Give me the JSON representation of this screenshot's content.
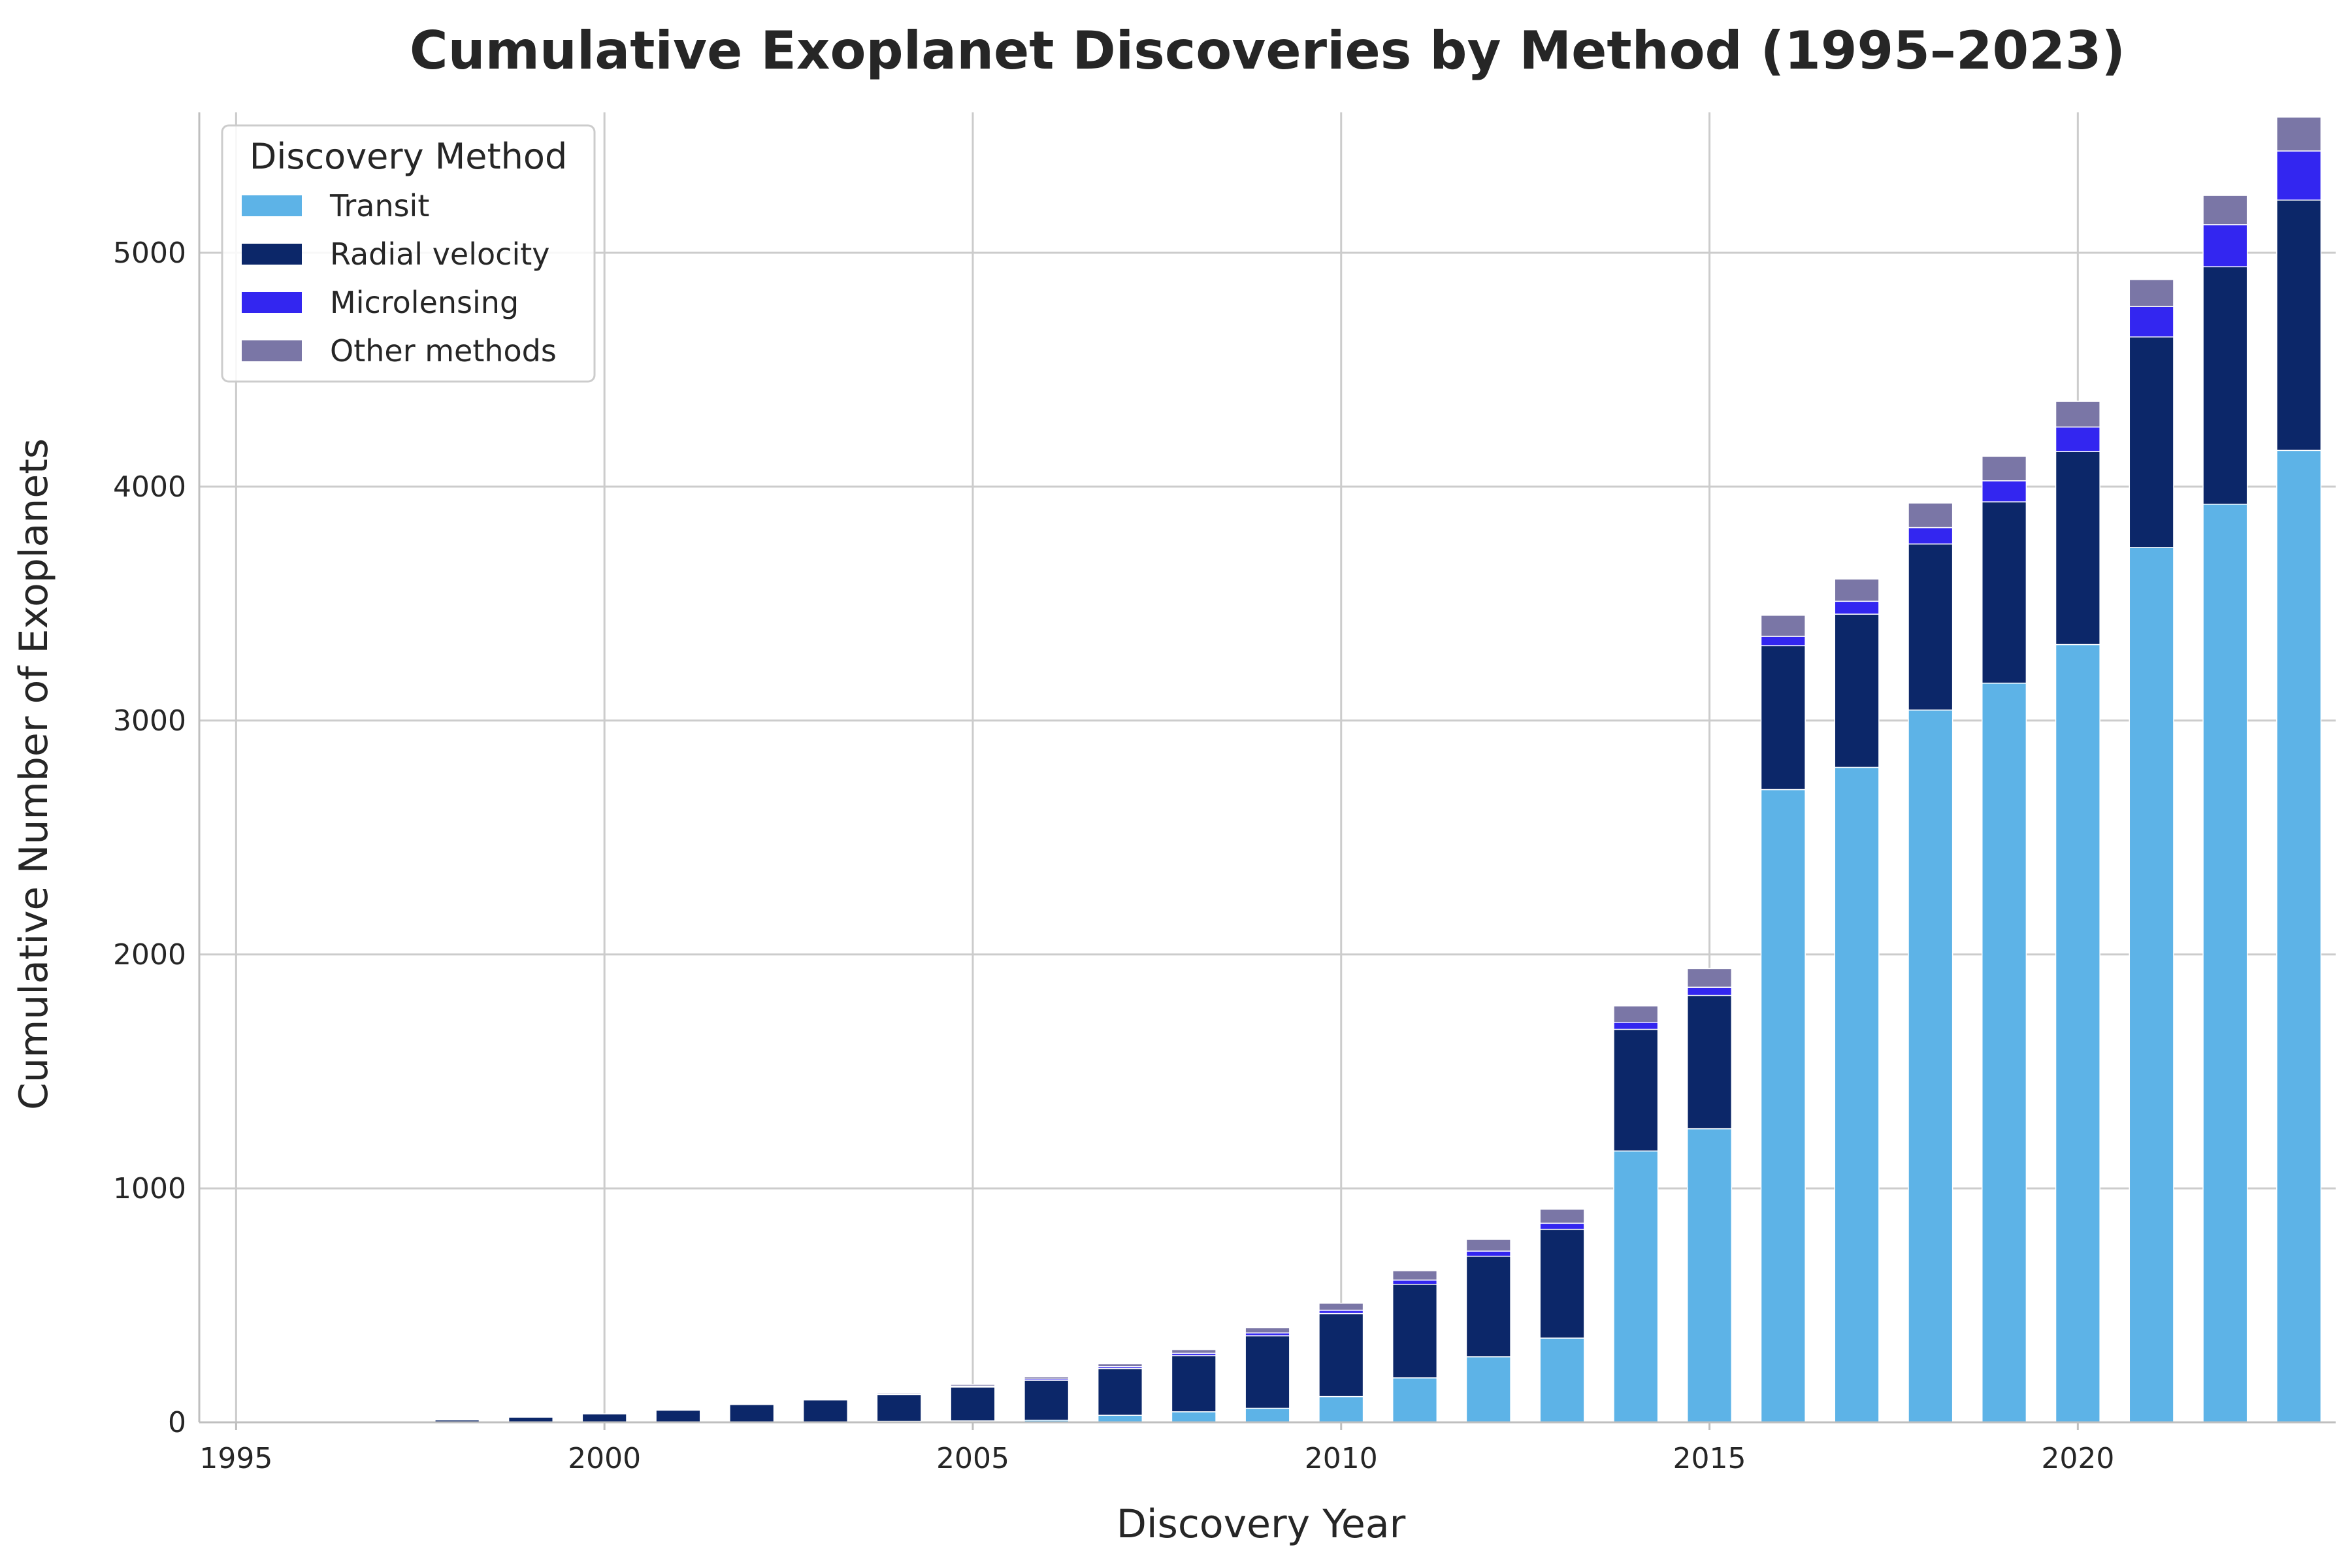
{
  "chart_data": {
    "type": "bar",
    "stacked": true,
    "title": "Cumulative Exoplanet Discoveries by Method (1995–2023)",
    "xlabel": "Discovery Year",
    "ylabel": "Cumulative Number of Exoplanets",
    "ylim": [
      0,
      5600
    ],
    "xlim": [
      1994.5,
      2023.5
    ],
    "xticks": [
      "1995",
      "2000",
      "2005",
      "2010",
      "2015",
      "2020"
    ],
    "yticks": [
      "0",
      "1000",
      "2000",
      "3000",
      "4000",
      "5000"
    ],
    "grid": true,
    "legend": {
      "title": "Discovery Method",
      "position": "top-left"
    },
    "categories": [
      1995,
      1996,
      1997,
      1998,
      1999,
      2000,
      2001,
      2002,
      2003,
      2004,
      2005,
      2006,
      2007,
      2008,
      2009,
      2010,
      2011,
      2012,
      2013,
      2014,
      2015,
      2016,
      2017,
      2018,
      2019,
      2020,
      2021,
      2022,
      2023
    ],
    "series": [
      {
        "name": "Transit",
        "color": "#5DB3E7",
        "values": [
          0,
          0,
          0,
          0,
          0,
          0,
          0,
          1,
          1,
          4,
          6,
          9,
          30,
          45,
          60,
          110,
          190,
          280,
          360,
          1160,
          1255,
          2705,
          2800,
          3045,
          3160,
          3325,
          3740,
          3925,
          4155
        ]
      },
      {
        "name": "Radial velocity",
        "color": "#0C2769",
        "values": [
          1,
          4,
          6,
          10,
          22,
          36,
          52,
          75,
          95,
          115,
          145,
          170,
          200,
          240,
          310,
          355,
          400,
          430,
          465,
          520,
          570,
          615,
          655,
          710,
          775,
          825,
          900,
          1015,
          1070
        ]
      },
      {
        "name": "Microlensing",
        "color": "#3326F0",
        "values": [
          0,
          0,
          0,
          0,
          0,
          0,
          0,
          0,
          1,
          2,
          4,
          6,
          8,
          10,
          12,
          14,
          18,
          22,
          26,
          30,
          35,
          40,
          55,
          70,
          90,
          105,
          130,
          180,
          210
        ]
      },
      {
        "name": "Other methods",
        "color": "#7A76A6",
        "values": [
          0,
          0,
          0,
          0,
          0,
          0,
          1,
          2,
          3,
          5,
          7,
          9,
          12,
          16,
          22,
          30,
          40,
          50,
          60,
          70,
          80,
          90,
          95,
          105,
          105,
          110,
          115,
          125,
          145
        ]
      }
    ]
  }
}
